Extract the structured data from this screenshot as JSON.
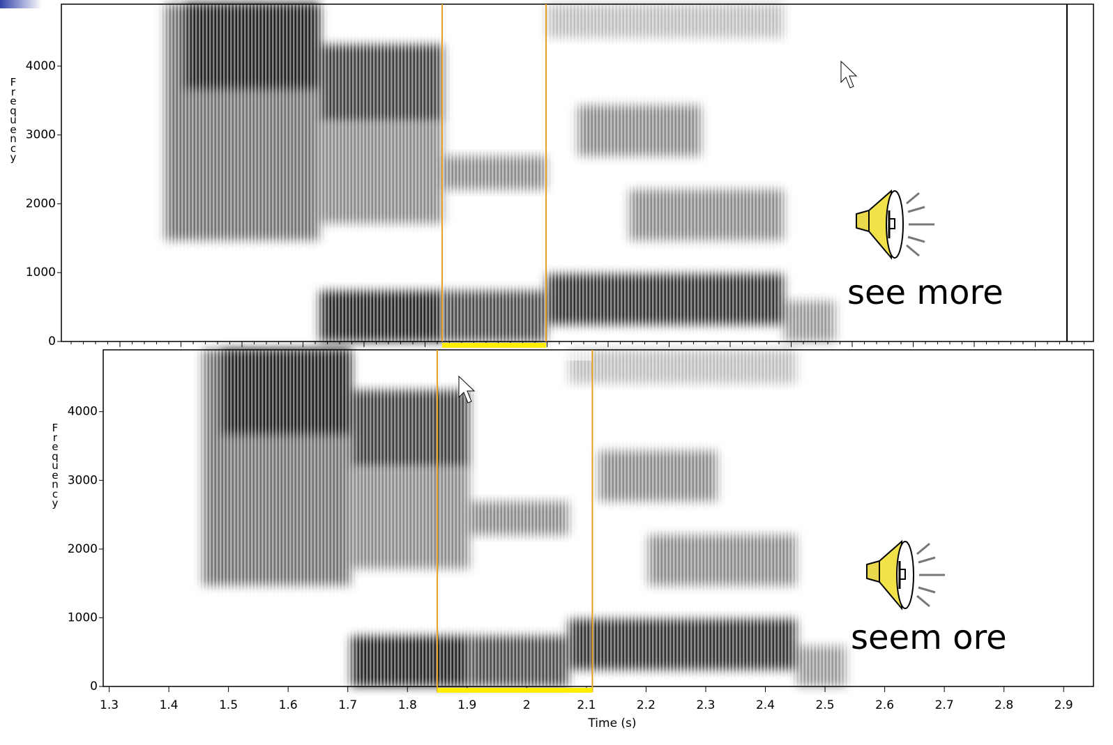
{
  "chart_data": [
    {
      "type": "spectrogram",
      "ylabel": "Frequency",
      "ylim": [
        0,
        4900
      ],
      "yticks": [
        0,
        1000,
        2000,
        3000,
        4000
      ],
      "caption": "see more"
    },
    {
      "type": "spectrogram",
      "ylabel": "Frequency",
      "xlabel": "Time (s)",
      "xlim": [
        1.29,
        2.95
      ],
      "xticks": [
        1.3,
        1.4,
        1.5,
        1.6,
        1.7,
        1.8,
        1.9,
        2,
        2.1,
        2.2,
        2.3,
        2.4,
        2.5,
        2.6,
        2.7,
        2.8,
        2.9
      ],
      "ylim": [
        0,
        4900
      ],
      "yticks": [
        0,
        1000,
        2000,
        3000,
        4000
      ],
      "caption": "seem ore",
      "selection": [
        1.85,
        2.11
      ]
    }
  ]
}
